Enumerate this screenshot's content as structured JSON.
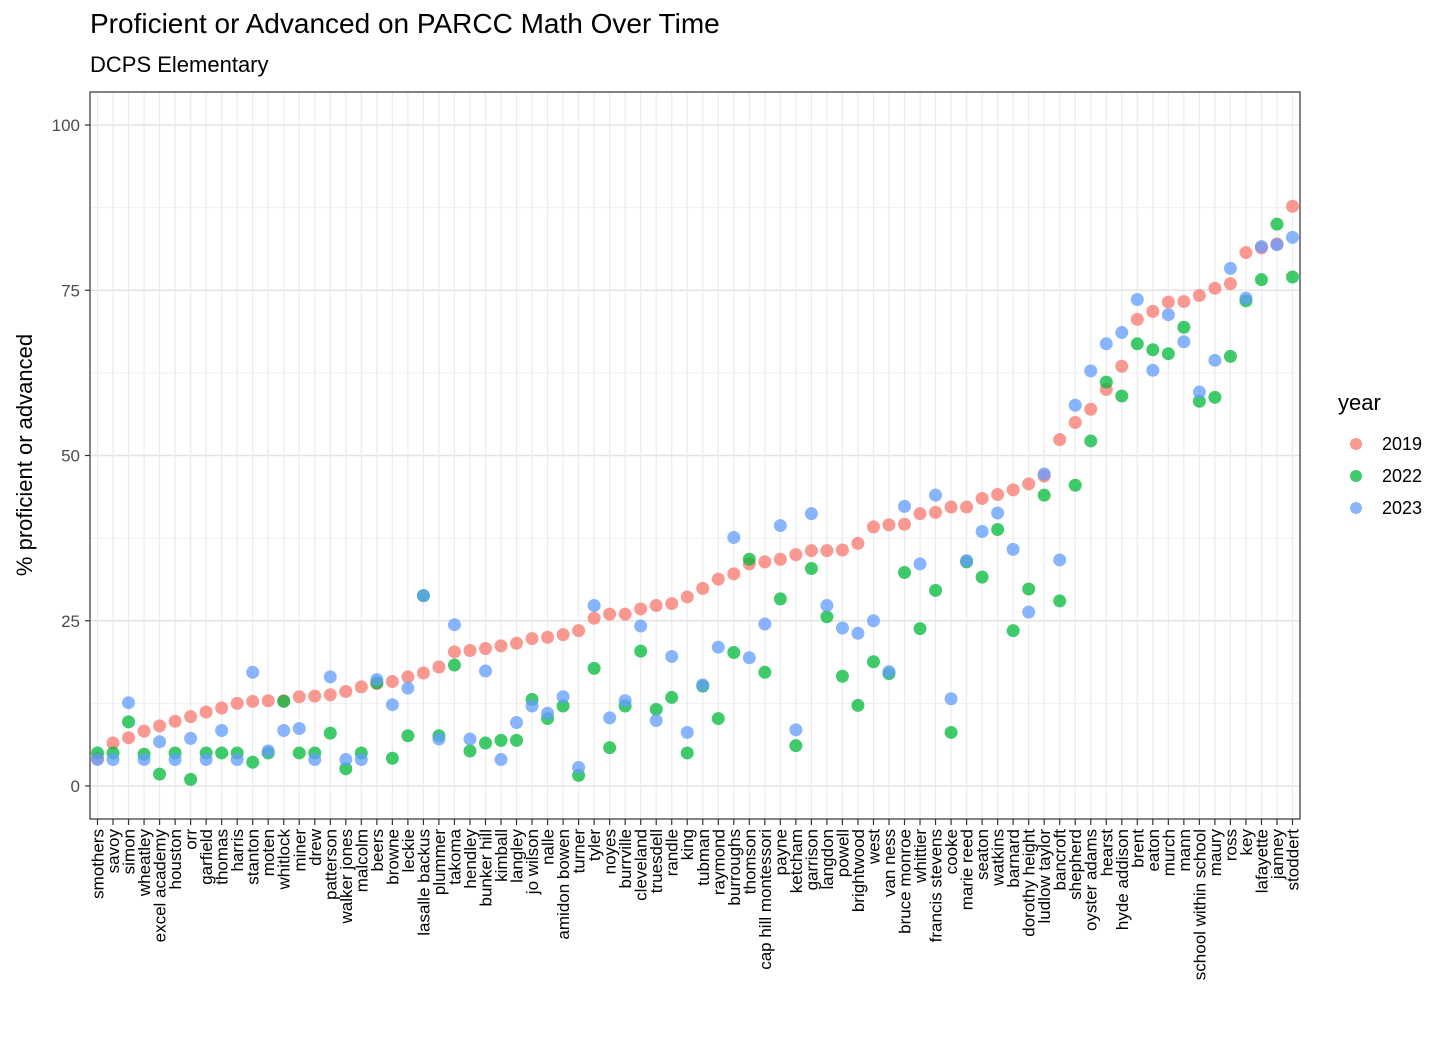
{
  "chart_data": {
    "type": "scatter",
    "title": "Proficient or Advanced on PARCC Math Over Time",
    "subtitle": "DCPS Elementary",
    "ylabel": "% proficient or advanced",
    "xlabel": "",
    "ylim": [
      -5,
      105
    ],
    "yticks": [
      0,
      25,
      50,
      75,
      100
    ],
    "legend_title": "year",
    "legend_position": "right",
    "grid": true,
    "categories": [
      "smothers",
      "savoy",
      "simon",
      "wheatley",
      "excel academy",
      "houston",
      "orr",
      "garfield",
      "thomas",
      "harris",
      "stanton",
      "moten",
      "whitlock",
      "miner",
      "drew",
      "patterson",
      "walker jones",
      "malcolm",
      "beers",
      "browne",
      "leckie",
      "lasalle backus",
      "plummer",
      "takoma",
      "hendley",
      "bunker hill",
      "kimball",
      "langley",
      "jo wilson",
      "nalle",
      "amidon bowen",
      "turner",
      "tyler",
      "noyes",
      "burrville",
      "cleveland",
      "truesdell",
      "randle",
      "king",
      "tubman",
      "raymond",
      "burroughs",
      "thomson",
      "cap hill montessori",
      "payne",
      "ketcham",
      "garrison",
      "langdon",
      "powell",
      "brightwood",
      "west",
      "van ness",
      "bruce monroe",
      "whittier",
      "francis stevens",
      "cooke",
      "marie reed",
      "seaton",
      "watkins",
      "barnard",
      "dorothy height",
      "ludlow taylor",
      "bancroft",
      "shepherd",
      "oyster adams",
      "hearst",
      "hyde addison",
      "brent",
      "eaton",
      "murch",
      "mann",
      "school within school",
      "maury",
      "ross",
      "key",
      "lafayette",
      "janney",
      "stoddert"
    ],
    "series": [
      {
        "name": "2019",
        "color": "#F8766D",
        "values": [
          4.2,
          6.5,
          7.3,
          8.3,
          9.1,
          9.8,
          10.5,
          11.2,
          11.8,
          12.5,
          12.8,
          12.9,
          12.9,
          13.5,
          13.6,
          13.8,
          14.3,
          15.0,
          15.5,
          15.8,
          16.5,
          17.1,
          18.0,
          20.3,
          20.5,
          20.8,
          21.2,
          21.6,
          22.3,
          22.5,
          22.9,
          23.5,
          25.4,
          26.0,
          26.0,
          26.8,
          27.3,
          27.6,
          28.6,
          29.9,
          31.3,
          32.1,
          33.6,
          33.9,
          34.3,
          35.0,
          35.6,
          35.6,
          35.7,
          36.7,
          39.2,
          39.5,
          39.6,
          41.2,
          41.4,
          42.2,
          42.2,
          43.5,
          44.1,
          44.8,
          45.7,
          46.9,
          52.4,
          55.0,
          57.0,
          60.0,
          63.5,
          70.6,
          71.8,
          73.2,
          73.3,
          74.2,
          75.3,
          76.0,
          80.7,
          81.4,
          82.0,
          87.7
        ]
      },
      {
        "name": "2022",
        "color": "#00BA38",
        "values": [
          5.0,
          5.0,
          9.7,
          4.8,
          1.8,
          5.0,
          1.0,
          5.0,
          5.0,
          5.0,
          3.6,
          5.0,
          12.8,
          5.0,
          5.0,
          8.0,
          2.6,
          5.0,
          15.6,
          4.2,
          7.6,
          28.8,
          7.6,
          18.3,
          5.3,
          6.5,
          6.9,
          6.9,
          13.1,
          10.2,
          12.1,
          1.6,
          17.8,
          5.8,
          12.1,
          20.4,
          11.6,
          13.4,
          5.0,
          15.1,
          10.2,
          20.2,
          34.3,
          17.2,
          28.3,
          6.1,
          32.9,
          25.6,
          16.6,
          12.2,
          18.8,
          17.0,
          32.3,
          23.8,
          29.6,
          8.1,
          33.9,
          31.6,
          38.8,
          23.5,
          29.8,
          44.0,
          28.0,
          45.5,
          52.2,
          61.1,
          59.0,
          66.9,
          66.0,
          65.4,
          69.4,
          58.2,
          58.8,
          65.0,
          73.4,
          76.6,
          85.0,
          77.0
        ]
      },
      {
        "name": "2023",
        "color": "#619CFF",
        "values": [
          4.0,
          4.0,
          12.6,
          4.0,
          6.7,
          4.0,
          7.2,
          4.0,
          8.4,
          4.0,
          17.2,
          5.3,
          8.4,
          8.7,
          4.0,
          16.5,
          4.0,
          4.0,
          16.1,
          12.3,
          14.8,
          28.8,
          7.1,
          24.4,
          7.1,
          17.4,
          4.0,
          9.6,
          12.1,
          11.0,
          13.5,
          2.8,
          27.3,
          10.3,
          12.9,
          24.2,
          9.9,
          19.6,
          8.1,
          15.3,
          21.0,
          37.6,
          19.4,
          24.5,
          39.4,
          8.5,
          41.2,
          27.3,
          23.9,
          23.1,
          25.0,
          17.3,
          42.3,
          33.6,
          44.0,
          13.2,
          34.1,
          38.5,
          41.3,
          35.8,
          26.3,
          47.2,
          34.2,
          57.6,
          62.8,
          66.9,
          68.6,
          73.6,
          62.9,
          71.3,
          67.2,
          59.6,
          64.4,
          78.3,
          73.8,
          81.6,
          81.9,
          83.0
        ]
      }
    ]
  }
}
